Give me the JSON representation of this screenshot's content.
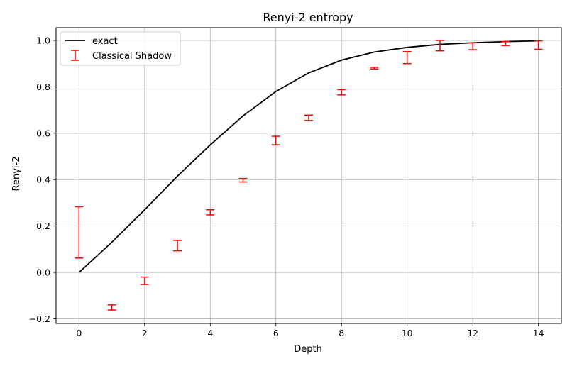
{
  "chart_data": {
    "type": "line",
    "title": "Renyi-2 entropy",
    "xlabel": "Depth",
    "ylabel": "Renyi-2",
    "xlim": [
      -0.7,
      14.7
    ],
    "ylim": [
      -0.22,
      1.055
    ],
    "xticks": [
      0,
      2,
      4,
      6,
      8,
      10,
      12,
      14
    ],
    "yticks": [
      -0.2,
      0.0,
      0.2,
      0.4,
      0.6,
      0.8,
      1.0
    ],
    "xtick_labels": [
      "0",
      "2",
      "4",
      "6",
      "8",
      "10",
      "12",
      "14"
    ],
    "ytick_labels": [
      "−0.2",
      "0.0",
      "0.2",
      "0.4",
      "0.6",
      "0.8",
      "1.0"
    ],
    "grid": true,
    "legend_position": "top-left",
    "series": [
      {
        "name": "exact",
        "kind": "line",
        "color": "#000000",
        "x": [
          0,
          1,
          2,
          3,
          4,
          5,
          6,
          7,
          8,
          9,
          10,
          11,
          12,
          13,
          14
        ],
        "y": [
          0.0,
          0.13,
          0.27,
          0.415,
          0.55,
          0.675,
          0.78,
          0.86,
          0.915,
          0.95,
          0.97,
          0.983,
          0.99,
          0.995,
          0.998
        ]
      },
      {
        "name": "Classical Shadow",
        "kind": "errorbar",
        "color": "#ff0000",
        "x": [
          0,
          1,
          2,
          3,
          4,
          5,
          6,
          7,
          8,
          9,
          10,
          11,
          12,
          13,
          14
        ],
        "low": [
          0.062,
          -0.162,
          -0.052,
          0.093,
          0.248,
          0.39,
          0.55,
          0.655,
          0.765,
          0.877,
          0.9,
          0.955,
          0.96,
          0.978,
          0.962
        ],
        "high": [
          0.283,
          -0.14,
          -0.02,
          0.138,
          0.27,
          0.405,
          0.587,
          0.678,
          0.788,
          0.884,
          0.952,
          1.0,
          0.99,
          0.995,
          0.998
        ]
      }
    ]
  }
}
